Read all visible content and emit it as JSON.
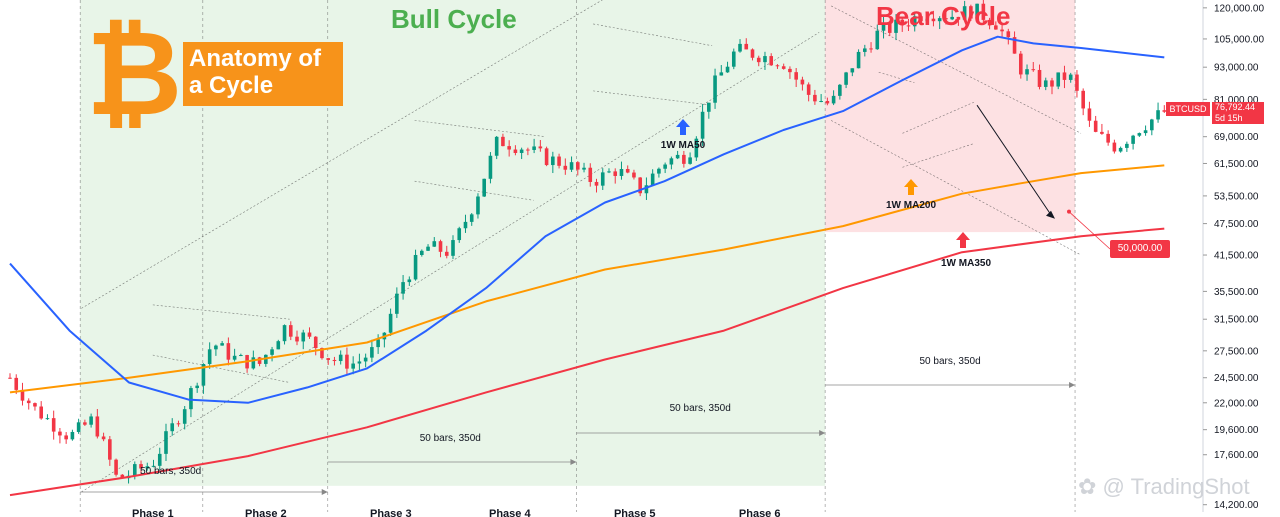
{
  "title": {
    "logo_symbol": "₿",
    "box_text": "Anatomy of a Cycle",
    "box_line1": "Anatomy of",
    "box_line2": "a Cycle"
  },
  "cycles": {
    "bull": "Bull Cycle",
    "bear": "Bear Cycle"
  },
  "symbol_tag": "BTCUSD",
  "last_price": {
    "value": "76,792.44",
    "countdown": "5d 15h"
  },
  "target_tag": "50,000.00",
  "watermark": "TradingShot",
  "colors": {
    "bull_zone": "#4caf50",
    "bear_zone": "#f23645",
    "ma50": "#2962ff",
    "ma200": "#ff9800",
    "ma350": "#f23645",
    "candle_up": "#089981",
    "candle_down": "#f23645",
    "brand": "#f7931a"
  },
  "chart_data": {
    "type": "candlestick",
    "symbol": "BTCUSD",
    "scale": "log",
    "y_ticks": [
      120000,
      105000,
      93000,
      81000,
      69000,
      61500,
      53500,
      47500,
      41500,
      35500,
      31500,
      27500,
      24500,
      22000,
      19600,
      17600,
      14200
    ],
    "y_tick_labels": [
      "120,000.00",
      "105,000.00",
      "93,000.00",
      "81,000.00",
      "69,000.00",
      "61,500.00",
      "53,500.00",
      "47,500.00",
      "41,500.00",
      "35,500.00",
      "31,500.00",
      "27,500.00",
      "24,500.00",
      "22,000.00",
      "19,600.00",
      "17,600.00",
      "14,200.00"
    ],
    "phases": [
      "Phase 1",
      "Phase 2",
      "Phase 3",
      "Phase 4",
      "Phase 5",
      "Phase 6"
    ],
    "bar_count_labels": [
      "50 bars, 350d",
      "50 bars, 350d",
      "50 bars, 350d",
      "50 bars, 350d"
    ],
    "ma_labels": [
      "1W MA50",
      "1W MA200",
      "1W MA350"
    ],
    "annotations": {
      "target": 50000,
      "last_price": 76792.44
    },
    "price_path": [
      {
        "x": 0.0,
        "p": 24500
      },
      {
        "x": 0.02,
        "p": 21500
      },
      {
        "x": 0.05,
        "p": 19000
      },
      {
        "x": 0.07,
        "p": 20500
      },
      {
        "x": 0.09,
        "p": 15800
      },
      {
        "x": 0.12,
        "p": 17000
      },
      {
        "x": 0.15,
        "p": 22500
      },
      {
        "x": 0.17,
        "p": 28500
      },
      {
        "x": 0.19,
        "p": 26500
      },
      {
        "x": 0.21,
        "p": 26000
      },
      {
        "x": 0.23,
        "p": 30500
      },
      {
        "x": 0.25,
        "p": 29000
      },
      {
        "x": 0.27,
        "p": 26500
      },
      {
        "x": 0.29,
        "p": 26000
      },
      {
        "x": 0.31,
        "p": 28000
      },
      {
        "x": 0.33,
        "p": 37000
      },
      {
        "x": 0.35,
        "p": 43000
      },
      {
        "x": 0.37,
        "p": 42000
      },
      {
        "x": 0.39,
        "p": 52000
      },
      {
        "x": 0.41,
        "p": 68000
      },
      {
        "x": 0.43,
        "p": 66000
      },
      {
        "x": 0.45,
        "p": 63000
      },
      {
        "x": 0.47,
        "p": 61000
      },
      {
        "x": 0.49,
        "p": 57000
      },
      {
        "x": 0.51,
        "p": 60000
      },
      {
        "x": 0.53,
        "p": 55000
      },
      {
        "x": 0.55,
        "p": 62000
      },
      {
        "x": 0.57,
        "p": 64000
      },
      {
        "x": 0.59,
        "p": 85000
      },
      {
        "x": 0.61,
        "p": 100000
      },
      {
        "x": 0.63,
        "p": 98000
      },
      {
        "x": 0.65,
        "p": 95000
      },
      {
        "x": 0.67,
        "p": 83000
      },
      {
        "x": 0.69,
        "p": 79000
      },
      {
        "x": 0.71,
        "p": 96000
      },
      {
        "x": 0.73,
        "p": 108000
      },
      {
        "x": 0.75,
        "p": 112000
      },
      {
        "x": 0.77,
        "p": 118000
      },
      {
        "x": 0.79,
        "p": 116000
      },
      {
        "x": 0.81,
        "p": 119000
      },
      {
        "x": 0.83,
        "p": 112000
      },
      {
        "x": 0.85,
        "p": 92000
      },
      {
        "x": 0.87,
        "p": 86000
      },
      {
        "x": 0.89,
        "p": 90000
      },
      {
        "x": 0.91,
        "p": 70000
      },
      {
        "x": 0.93,
        "p": 66000
      },
      {
        "x": 0.95,
        "p": 72000
      },
      {
        "x": 0.97,
        "p": 76792
      }
    ],
    "ma50": [
      {
        "x": 0.0,
        "p": 40000
      },
      {
        "x": 0.05,
        "p": 30000
      },
      {
        "x": 0.1,
        "p": 24000
      },
      {
        "x": 0.15,
        "p": 22300
      },
      {
        "x": 0.2,
        "p": 22000
      },
      {
        "x": 0.25,
        "p": 23500
      },
      {
        "x": 0.3,
        "p": 25500
      },
      {
        "x": 0.35,
        "p": 30000
      },
      {
        "x": 0.4,
        "p": 36000
      },
      {
        "x": 0.45,
        "p": 45000
      },
      {
        "x": 0.5,
        "p": 52000
      },
      {
        "x": 0.55,
        "p": 57000
      },
      {
        "x": 0.6,
        "p": 64000
      },
      {
        "x": 0.65,
        "p": 71000
      },
      {
        "x": 0.7,
        "p": 77000
      },
      {
        "x": 0.75,
        "p": 88000
      },
      {
        "x": 0.8,
        "p": 100000
      },
      {
        "x": 0.83,
        "p": 106000
      },
      {
        "x": 0.86,
        "p": 103000
      },
      {
        "x": 0.9,
        "p": 101000
      },
      {
        "x": 0.97,
        "p": 97000
      }
    ],
    "ma200": [
      {
        "x": 0.0,
        "p": 23000
      },
      {
        "x": 0.1,
        "p": 24500
      },
      {
        "x": 0.2,
        "p": 26300
      },
      {
        "x": 0.3,
        "p": 28500
      },
      {
        "x": 0.4,
        "p": 34000
      },
      {
        "x": 0.5,
        "p": 39000
      },
      {
        "x": 0.6,
        "p": 42500
      },
      {
        "x": 0.7,
        "p": 47000
      },
      {
        "x": 0.8,
        "p": 54000
      },
      {
        "x": 0.85,
        "p": 56500
      },
      {
        "x": 0.9,
        "p": 59000
      },
      {
        "x": 0.97,
        "p": 61000
      }
    ],
    "ma350": [
      {
        "x": 0.0,
        "p": 14800
      },
      {
        "x": 0.1,
        "p": 16000
      },
      {
        "x": 0.2,
        "p": 17500
      },
      {
        "x": 0.3,
        "p": 19800
      },
      {
        "x": 0.4,
        "p": 23000
      },
      {
        "x": 0.5,
        "p": 26500
      },
      {
        "x": 0.6,
        "p": 30000
      },
      {
        "x": 0.7,
        "p": 36000
      },
      {
        "x": 0.8,
        "p": 42000
      },
      {
        "x": 0.9,
        "p": 45000
      },
      {
        "x": 0.97,
        "p": 46500
      }
    ]
  }
}
